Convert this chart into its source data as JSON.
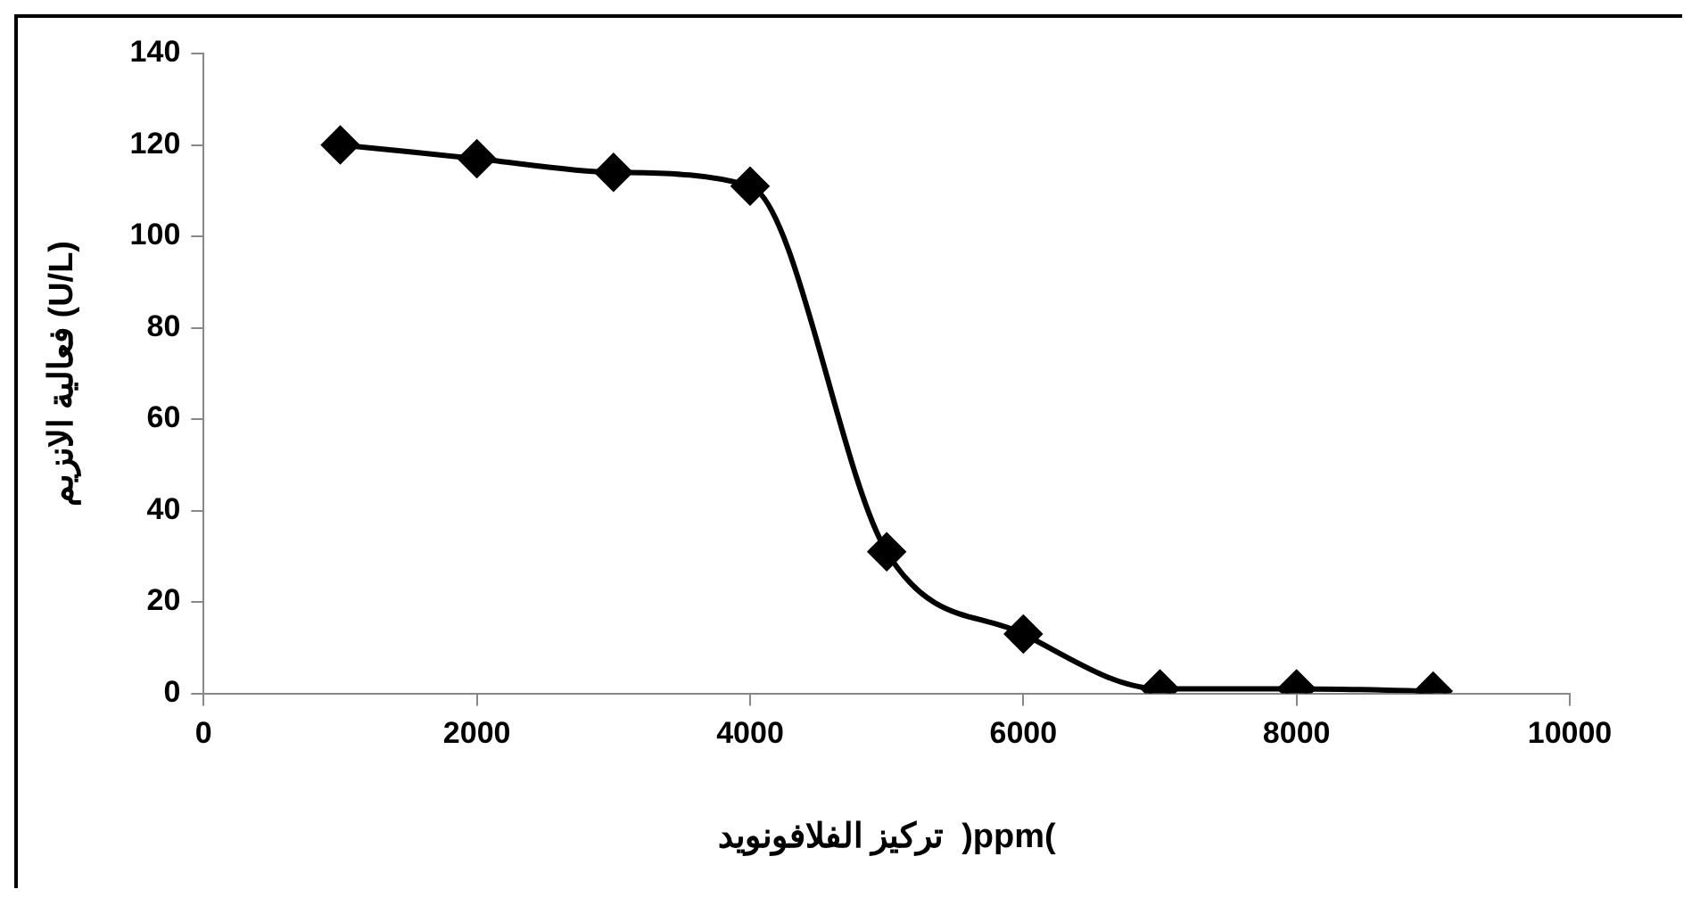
{
  "chart_data": {
    "type": "line",
    "xlabel": "تركيز الفلافونويد  )ppm(",
    "ylabel": "فعالية الانزيم (U/L)",
    "x": [
      1000,
      2000,
      3000,
      4000,
      5000,
      6000,
      7000,
      8000,
      9000
    ],
    "series": [
      {
        "color": "#000000",
        "values": [
          120,
          117,
          114,
          111,
          31,
          13,
          1,
          1,
          0.5
        ]
      }
    ],
    "xlim": [
      0,
      10000
    ],
    "xticks": [
      0,
      2000,
      4000,
      6000,
      8000,
      10000
    ],
    "ylim": [
      0,
      140
    ],
    "yticks": [
      0,
      20,
      40,
      60,
      80,
      100,
      120,
      140
    ],
    "grid": false,
    "legend": false,
    "marker": "diamond",
    "line_style": "solid"
  }
}
